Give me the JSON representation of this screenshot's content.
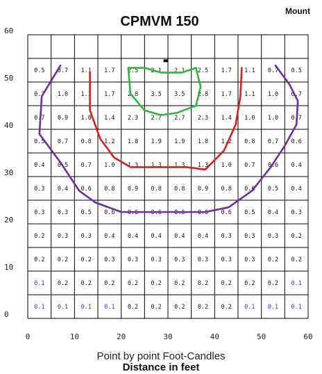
{
  "chart_data": {
    "type": "heatmap",
    "title": "CPMVM 150",
    "mount_label": "Mount",
    "subtitle": "Point by point Foot-Candles",
    "xlabel": "Distance in feet",
    "ylabel": "",
    "xlim": [
      0,
      60
    ],
    "ylim": [
      0,
      60
    ],
    "x_ticks": [
      "0",
      "10",
      "20",
      "30",
      "40",
      "50",
      "60"
    ],
    "y_ticks": [
      "0",
      "10",
      "20",
      "30",
      "40",
      "50",
      "60"
    ],
    "grid": true,
    "point_columns_x": [
      2.5,
      7.5,
      12.5,
      17.5,
      22.5,
      27.5,
      32.5,
      37.5,
      42.5,
      47.5,
      52.5,
      57.5
    ],
    "point_rows": [
      {
        "y": 52.5,
        "values": [
          "0.5",
          "0.7",
          "1.1",
          "1.7",
          "2.5",
          "2.1",
          "2.1",
          "2.5",
          "1.7",
          "1.1",
          "0.7",
          "0.5"
        ]
      },
      {
        "y": 47.5,
        "values": [
          "0.7",
          "1.0",
          "1.1",
          "1.7",
          "2.8",
          "3.5",
          "3.5",
          "2.8",
          "1.7",
          "1.1",
          "1.0",
          "0.7"
        ]
      },
      {
        "y": 42.5,
        "values": [
          "0.7",
          "0.9",
          "1.0",
          "1.4",
          "2.3",
          "2.7",
          "2.7",
          "2.3",
          "1.4",
          "1.0",
          "1.0",
          "0.7"
        ]
      },
      {
        "y": 37.5,
        "values": [
          "0.5",
          "0.7",
          "0.8",
          "1.2",
          "1.8",
          "1.9",
          "1.9",
          "1.8",
          "1.2",
          "0.8",
          "0.7",
          "0.6"
        ]
      },
      {
        "y": 32.5,
        "values": [
          "0.4",
          "0.5",
          "0.7",
          "1.0",
          "1.3",
          "1.3",
          "1.3",
          "1.3",
          "1.0",
          "0.7",
          "0.6",
          "0.4"
        ]
      },
      {
        "y": 27.5,
        "values": [
          "0.3",
          "0.4",
          "0.6",
          "0.8",
          "0.9",
          "0.8",
          "0.8",
          "0.9",
          "0.8",
          "0.6",
          "0.5",
          "0.4"
        ]
      },
      {
        "y": 22.5,
        "values": [
          "0.3",
          "0.3",
          "0.5",
          "0.6",
          "0.6",
          "0.6",
          "0.6",
          "0.6",
          "0.6",
          "0.5",
          "0.4",
          "0.3"
        ]
      },
      {
        "y": 17.5,
        "values": [
          "0.2",
          "0.3",
          "0.3",
          "0.4",
          "0.4",
          "0.4",
          "0.4",
          "0.4",
          "0.3",
          "0.3",
          "0.3",
          "0.2"
        ]
      },
      {
        "y": 12.5,
        "values": [
          "0.2",
          "0.2",
          "0.2",
          "0.3",
          "0.3",
          "0.3",
          "0.3",
          "0.3",
          "0.3",
          "0.3",
          "0.2",
          "0.2"
        ]
      },
      {
        "y": 7.5,
        "values": [
          "0.1",
          "0.2",
          "0.2",
          "0.2",
          "0.2",
          "0.2",
          "0.2",
          "0.2",
          "0.2",
          "0.2",
          "0.2",
          "0.1"
        ]
      },
      {
        "y": 2.5,
        "values": [
          "0.1",
          "0.1",
          "0.1",
          "0.1",
          "0.2",
          "0.2",
          "0.2",
          "0.2",
          "0.2",
          "0.1",
          "0.1",
          "0.1"
        ]
      }
    ],
    "value_colors": {
      "0.1": "#3a35c9",
      "default": "#111111"
    },
    "fixture_position": {
      "x": 29.5,
      "y": 54.5
    },
    "isolines": [
      {
        "color": "#2fb73a",
        "points": [
          [
            21.5,
            53
          ],
          [
            22,
            47.5
          ],
          [
            25,
            44
          ],
          [
            28.5,
            43
          ],
          [
            32,
            43.5
          ],
          [
            36,
            45
          ],
          [
            37,
            49
          ],
          [
            36,
            53
          ],
          [
            33,
            52
          ],
          [
            28.5,
            52
          ],
          [
            25,
            53
          ],
          [
            21.5,
            53
          ]
        ]
      },
      {
        "color": "#e01b1b",
        "points": [
          [
            13.3,
            52
          ],
          [
            13.3,
            44
          ],
          [
            15.5,
            38
          ],
          [
            18.5,
            34
          ],
          [
            22,
            32
          ],
          [
            28,
            32
          ],
          [
            34,
            32
          ],
          [
            38,
            31.5
          ],
          [
            42,
            35.5
          ],
          [
            44.5,
            41
          ],
          [
            45.5,
            47
          ],
          [
            45.8,
            53
          ]
        ]
      },
      {
        "color": "#6a2ea3",
        "points": [
          [
            7,
            53.5
          ],
          [
            3,
            47
          ],
          [
            2.5,
            39
          ],
          [
            7,
            33
          ],
          [
            11,
            27
          ],
          [
            14.5,
            24.5
          ],
          [
            20,
            22.5
          ],
          [
            25,
            22.5
          ],
          [
            30,
            22.5
          ],
          [
            34,
            22.5
          ],
          [
            38,
            22.5
          ],
          [
            43,
            23.5
          ],
          [
            48,
            27
          ],
          [
            52,
            32
          ],
          [
            55,
            36.5
          ],
          [
            57.5,
            41
          ],
          [
            57.8,
            46
          ],
          [
            56,
            49.5
          ],
          [
            53,
            53.5
          ]
        ]
      }
    ]
  }
}
